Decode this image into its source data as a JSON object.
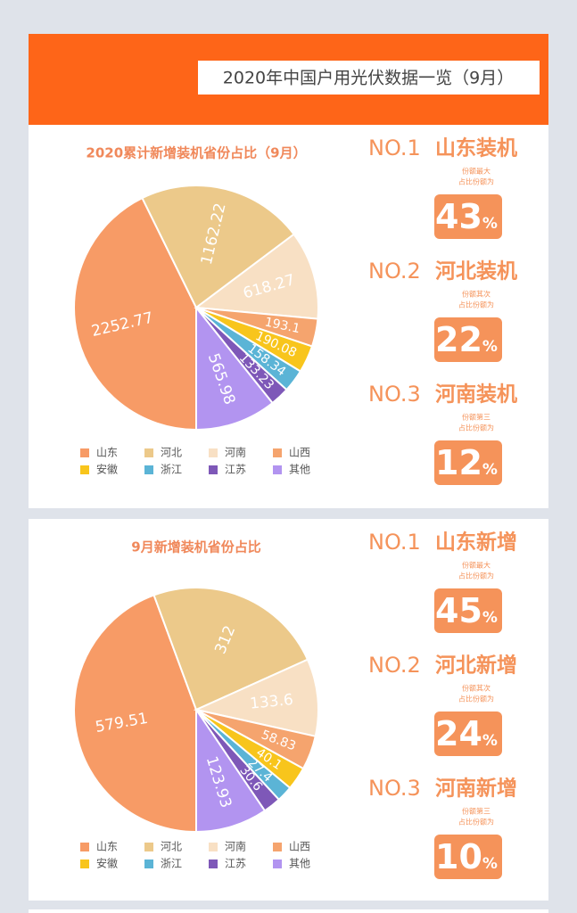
{
  "header": {
    "title": "2020年中国户用光伏数据一览（9月）"
  },
  "chart_data": [
    {
      "type": "pie",
      "title": "2020累计新增装机省份占比（9月）",
      "categories": [
        "山东",
        "河北",
        "河南",
        "山西",
        "安徽",
        "浙江",
        "江苏",
        "其他"
      ],
      "values": [
        2252.77,
        1162.22,
        618.27,
        193.1,
        190.08,
        158.34,
        133.23,
        565.98
      ],
      "colors": [
        "#f79b66",
        "#ecc98a",
        "#f8e0c4",
        "#f5a46e",
        "#f8c51c",
        "#5bb4d6",
        "#7e58b8",
        "#b294f0"
      ]
    },
    {
      "type": "pie",
      "title": "9月新增装机省份占比",
      "categories": [
        "山东",
        "河北",
        "河南",
        "山西",
        "安徽",
        "浙江",
        "江苏",
        "其他"
      ],
      "values": [
        579.51,
        312,
        133.6,
        58.83,
        40.1,
        27.4,
        30.6,
        123.93
      ],
      "colors": [
        "#f79b66",
        "#ecc98a",
        "#f8e0c4",
        "#f5a46e",
        "#f8c51c",
        "#5bb4d6",
        "#7e58b8",
        "#b294f0"
      ]
    }
  ],
  "rankings": [
    [
      {
        "rank": "NO.1",
        "name": "山东装机",
        "note1": "份额最大",
        "note2": "占比份额为",
        "share": "43",
        "unit": "%"
      },
      {
        "rank": "NO.2",
        "name": "河北装机",
        "note1": "份额其次",
        "note2": "占比份额为",
        "share": "22",
        "unit": "%"
      },
      {
        "rank": "NO.3",
        "name": "河南装机",
        "note1": "份额第三",
        "note2": "占比份额为",
        "share": "12",
        "unit": "%"
      }
    ],
    [
      {
        "rank": "NO.1",
        "name": "山东新增",
        "note1": "份额最大",
        "note2": "占比份额为",
        "share": "45",
        "unit": "%"
      },
      {
        "rank": "NO.2",
        "name": "河北新增",
        "note1": "份额其次",
        "note2": "占比份额为",
        "share": "24",
        "unit": "%"
      },
      {
        "rank": "NO.3",
        "name": "河南新增",
        "note1": "份额第三",
        "note2": "占比份额为",
        "share": "10",
        "unit": "%"
      }
    ]
  ]
}
